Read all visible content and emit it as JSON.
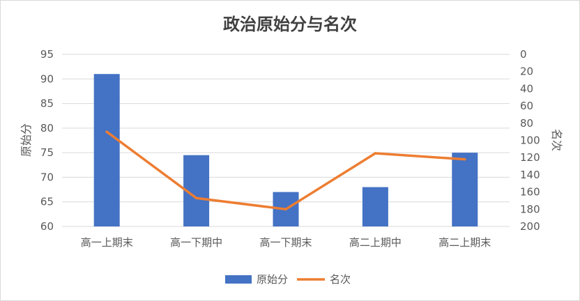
{
  "chart_data": {
    "type": "bar",
    "title": "政治原始分与名次",
    "categories": [
      "高一上期末",
      "高一下期中",
      "高一下期末",
      "高二上期中",
      "高二上期末"
    ],
    "series": [
      {
        "name": "原始分",
        "type": "bar",
        "axis": "left",
        "color": "#4472C4",
        "values": [
          91,
          74.5,
          67,
          68,
          75
        ]
      },
      {
        "name": "名次",
        "type": "line",
        "axis": "right",
        "color": "#ED7D31",
        "values": [
          90,
          167,
          180,
          115,
          122
        ]
      }
    ],
    "ylabel": "原始分",
    "y2label": "名次",
    "ylim": [
      60,
      95
    ],
    "yticks": [
      "95",
      "90",
      "85",
      "80",
      "75",
      "70",
      "65",
      "60"
    ],
    "y2lim": [
      0,
      200
    ],
    "y2_reversed": true,
    "y2ticks": [
      "0",
      "20",
      "40",
      "60",
      "80",
      "100",
      "120",
      "140",
      "160",
      "180",
      "200"
    ],
    "grid": true,
    "legend": "bottom-center"
  }
}
